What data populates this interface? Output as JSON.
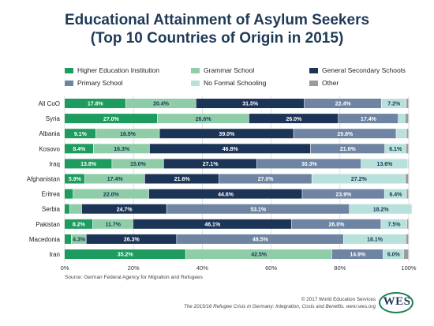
{
  "chart_data": {
    "type": "bar",
    "orientation": "horizontal",
    "stacked": true,
    "title": [
      "Educational Attainment of Asylum Seekers",
      "(Top 10 Countries of Origin in 2015)"
    ],
    "categories": [
      "All CoO",
      "Syria",
      "Albania",
      "Kosovo",
      "Iraq",
      "Afghanistan",
      "Eritrea",
      "Serbia",
      "Pakistan",
      "Macedonia",
      "Iran"
    ],
    "series": [
      {
        "name": "Higher Education Institution",
        "color": "#1e9b5e",
        "values": [
          17.8,
          27.0,
          9.1,
          8.4,
          13.8,
          5.9,
          2.5,
          1.5,
          8.2,
          2.0,
          35.2
        ],
        "labels": [
          "17.8%",
          "27.0%",
          "9.1%",
          "8.4%",
          "13.8%",
          "5.9%",
          "",
          "",
          "8.2%",
          "",
          "35.2%"
        ]
      },
      {
        "name": "Grammar School",
        "color": "#8fcda9",
        "values": [
          20.4,
          26.6,
          18.5,
          16.3,
          15.0,
          17.4,
          22.0,
          3.5,
          11.7,
          4.3,
          42.5
        ],
        "labels": [
          "20.4%",
          "26.6%",
          "18.5%",
          "16.3%",
          "15.0%",
          "17.4%",
          "22.0%",
          "",
          "11.7%",
          "4.3%",
          "42.5%"
        ]
      },
      {
        "name": "General Secondary Schools",
        "color": "#1c3557",
        "values": [
          31.5,
          26.0,
          39.0,
          46.8,
          27.1,
          21.6,
          44.6,
          24.7,
          46.1,
          26.3,
          0
        ],
        "labels": [
          "31.5%",
          "26.0%",
          "39.0%",
          "46.8%",
          "27.1%",
          "21.6%",
          "44.6%",
          "24.7%",
          "46.1%",
          "26.3%",
          ""
        ]
      },
      {
        "name": "Primary School",
        "color": "#6e84a2",
        "values": [
          22.4,
          17.4,
          29.8,
          21.6,
          30.3,
          27.0,
          23.9,
          53.1,
          26.0,
          48.5,
          14.9
        ],
        "labels": [
          "22.4%",
          "17.4%",
          "29.8%",
          "21.6%",
          "30.3%",
          "27.0%",
          "23.9%",
          "53.1%",
          "26.0%",
          "48.5%",
          "14.9%"
        ]
      },
      {
        "name": "No Formal Schooling",
        "color": "#b9e1db",
        "values": [
          7.2,
          2.0,
          3.0,
          6.1,
          13.6,
          27.2,
          6.4,
          18.2,
          7.5,
          18.1,
          6.0
        ],
        "labels": [
          "7.2%",
          "",
          "",
          "6.1%",
          "13.6%",
          "27.2%",
          "6.4%",
          "18.2%",
          "7.5%",
          "18.1%",
          "6.0%"
        ]
      },
      {
        "name": "Other",
        "color": "#9b9b9b",
        "values": [
          0.7,
          1.0,
          0.6,
          0.8,
          0.2,
          0.9,
          0.6,
          0.0,
          0.5,
          0.8,
          1.4
        ],
        "labels": [
          "",
          "",
          "",
          "",
          "",
          "",
          "",
          "",
          "",
          "",
          ""
        ]
      }
    ],
    "xlim": [
      0,
      100
    ],
    "xticks": [
      "0%",
      "20%",
      "40%",
      "60%",
      "80%",
      "100%"
    ],
    "grid": true,
    "legend_position": "top"
  },
  "footer": {
    "source": "Source: German Federal Agency for Migration and Refugees",
    "copyright": "© 2017 World Education Services",
    "citation": "The 2015/16 Refugee Crisis in Germany: Integration, Costs and Benefits. wenr.wes.org",
    "logo_text": "WES"
  }
}
